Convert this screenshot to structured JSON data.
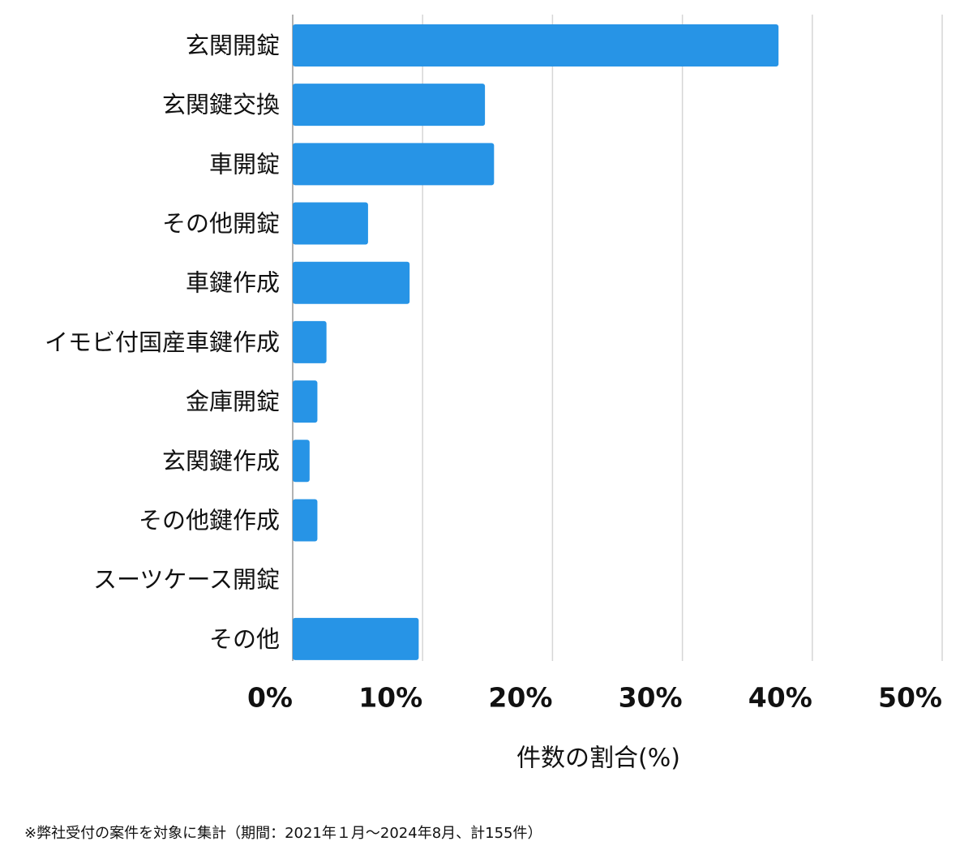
{
  "chart_data": {
    "type": "bar",
    "orientation": "horizontal",
    "categories": [
      "玄関開錠",
      "玄関鍵交換",
      "車開錠",
      "その他開錠",
      "車鍵作成",
      "イモビ付国産車鍵作成",
      "金庫開錠",
      "玄関鍵作成",
      "その他鍵作成",
      "スーツケース開錠",
      "その他"
    ],
    "values": [
      37.4,
      14.8,
      15.5,
      5.8,
      9.0,
      2.6,
      1.9,
      1.3,
      1.9,
      0,
      9.7
    ],
    "color": "#2794e6",
    "xlim": [
      0,
      50
    ],
    "xticks": [
      {
        "value": 0,
        "label": "0%"
      },
      {
        "value": 10,
        "label": "10%"
      },
      {
        "value": 20,
        "label": "20%"
      },
      {
        "value": 30,
        "label": "30%"
      },
      {
        "value": 40,
        "label": "40%"
      },
      {
        "value": 50,
        "label": "50%"
      }
    ],
    "x_label": "件数の割合(%)",
    "grid": true,
    "footnote": "※弊社受付の案件を対象に集計（期間：2021年１月〜2024年8月、計155件）"
  }
}
